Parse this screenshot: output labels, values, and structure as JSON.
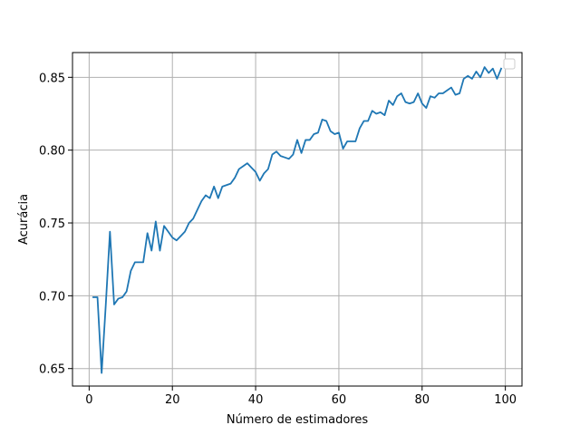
{
  "chart_data": {
    "type": "line",
    "title": "",
    "xlabel": "Número de estimadores",
    "ylabel": "Acurácia",
    "xlim": [
      -4,
      104
    ],
    "ylim": [
      0.638,
      0.867
    ],
    "xticks": [
      0,
      20,
      40,
      60,
      80,
      100
    ],
    "yticks": [
      0.65,
      0.7,
      0.75,
      0.8,
      0.85
    ],
    "ytick_labels": [
      "0.65",
      "0.70",
      "0.75",
      "0.80",
      "0.85"
    ],
    "grid": true,
    "legend": "top-right, empty",
    "line_color": "#1f77b4",
    "series": [
      {
        "x": [
          1,
          2,
          3,
          4,
          5,
          6,
          7,
          8,
          9,
          10,
          11,
          12,
          13,
          14,
          15,
          16,
          17,
          18,
          19,
          20,
          21,
          22,
          23,
          24,
          25,
          26,
          27,
          28,
          29,
          30,
          31,
          32,
          33,
          34,
          35,
          36,
          37,
          38,
          39,
          40,
          41,
          42,
          43,
          44,
          45,
          46,
          47,
          48,
          49,
          50,
          51,
          52,
          53,
          54,
          55,
          56,
          57,
          58,
          59,
          60,
          61,
          62,
          63,
          64,
          65,
          66,
          67,
          68,
          69,
          70,
          71,
          72,
          73,
          74,
          75,
          76,
          77,
          78,
          79,
          80,
          81,
          82,
          83,
          84,
          85,
          86,
          87,
          88,
          89,
          90,
          91,
          92,
          93,
          94,
          95,
          96,
          97,
          98,
          99
        ],
        "values": [
          0.699,
          0.699,
          0.647,
          0.694,
          0.744,
          0.694,
          0.698,
          0.699,
          0.703,
          0.717,
          0.723,
          0.723,
          0.723,
          0.743,
          0.731,
          0.751,
          0.731,
          0.748,
          0.744,
          0.74,
          0.738,
          0.741,
          0.744,
          0.75,
          0.753,
          0.759,
          0.765,
          0.769,
          0.767,
          0.775,
          0.767,
          0.775,
          0.776,
          0.777,
          0.781,
          0.787,
          0.789,
          0.791,
          0.788,
          0.785,
          0.779,
          0.784,
          0.787,
          0.797,
          0.799,
          0.796,
          0.795,
          0.794,
          0.797,
          0.807,
          0.798,
          0.807,
          0.807,
          0.811,
          0.812,
          0.821,
          0.82,
          0.813,
          0.811,
          0.812,
          0.801,
          0.806,
          0.806,
          0.806,
          0.815,
          0.82,
          0.82,
          0.827,
          0.825,
          0.826,
          0.824,
          0.834,
          0.831,
          0.837,
          0.839,
          0.833,
          0.832,
          0.833,
          0.839,
          0.832,
          0.829,
          0.837,
          0.836,
          0.839,
          0.839,
          0.841,
          0.843,
          0.838,
          0.839,
          0.849,
          0.851,
          0.849,
          0.854,
          0.85,
          0.857,
          0.853,
          0.856,
          0.849,
          0.856
        ]
      }
    ]
  }
}
